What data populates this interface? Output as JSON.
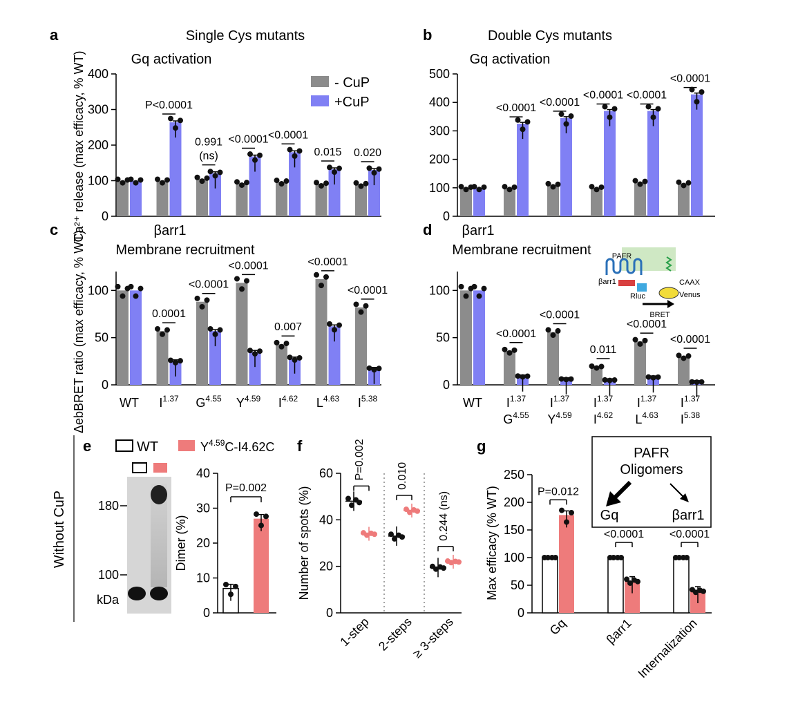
{
  "figure_labels": {
    "a": "a",
    "b": "b",
    "c": "c",
    "d": "d",
    "e": "e",
    "f": "f",
    "g": "g"
  },
  "colors": {
    "gray": "#8c8c8c",
    "blue": "#8080f4",
    "red": "#ee7b7b",
    "black": "#111111"
  },
  "legend_ab": {
    "minus": "- CuP",
    "plus": "+CuP"
  },
  "panel_e_side": "Without CuP",
  "chart_data": [
    {
      "id": "a",
      "type": "bar",
      "title": "Single Cys mutants",
      "subtitle": "Gq activation",
      "ylabel": "Ca²⁺ release (max efficacy, % WT)",
      "ylim": [
        0,
        400
      ],
      "yticks": [
        0,
        100,
        200,
        300,
        400
      ],
      "categories": [
        "WT",
        "I1.37",
        "G4.55",
        "Y4.59",
        "I4.62",
        "L4.63",
        "I5.38"
      ],
      "series": [
        {
          "name": "- CuP",
          "values": [
            100,
            100,
            105,
            93,
            97,
            91,
            90
          ]
        },
        {
          "name": "+CuP",
          "values": [
            100,
            264,
            121,
            168,
            180,
            132,
            130
          ]
        }
      ],
      "p_values": [
        "",
        "P<0.0001",
        "0.991 (ns)",
        "<0.0001",
        "<0.0001",
        "0.015",
        "0.020"
      ]
    },
    {
      "id": "b",
      "type": "bar",
      "title": "Double Cys mutants",
      "subtitle": "Gq activation",
      "ylim": [
        0,
        500
      ],
      "yticks": [
        0,
        100,
        200,
        300,
        400,
        500
      ],
      "categories": [
        "WT",
        "I1.37-G4.55",
        "I1.37-Y4.59",
        "I1.37-I4.62",
        "I1.37-L4.63",
        "I1.37-I5.38"
      ],
      "series": [
        {
          "name": "- CuP",
          "values": [
            100,
            100,
            110,
            100,
            120,
            115
          ]
        },
        {
          "name": "+CuP",
          "values": [
            100,
            325,
            345,
            370,
            370,
            428
          ]
        }
      ],
      "p_values": [
        "",
        "<0.0001",
        "<0.0001",
        "<0.0001",
        "<0.0001",
        "<0.0001"
      ]
    },
    {
      "id": "c",
      "type": "bar",
      "title": "βarr1",
      "subtitle": "Membrane recruitment",
      "ylabel": "ΔebBRET ratio (max efficacy, % WT)",
      "ylim": [
        0,
        120
      ],
      "yticks": [
        0,
        50,
        100
      ],
      "categories": [
        "WT",
        "I1.37",
        "G4.55",
        "Y4.59",
        "I4.62",
        "L4.63",
        "I5.38"
      ],
      "series": [
        {
          "name": "- CuP",
          "values": [
            100,
            57,
            88,
            108,
            43,
            112,
            82
          ]
        },
        {
          "name": "+CuP",
          "values": [
            100,
            25,
            57,
            35,
            28,
            62,
            17
          ]
        }
      ],
      "p_values": [
        "",
        "0.0001",
        "<0.0001",
        "<0.0001",
        "0.007",
        "<0.0001",
        "<0.0001"
      ]
    },
    {
      "id": "d",
      "type": "bar",
      "title": "βarr1",
      "subtitle": "Membrane recruitment",
      "ylim": [
        0,
        120
      ],
      "yticks": [
        0,
        50,
        100
      ],
      "categories": [
        "WT",
        "I1.37-G4.55",
        "I1.37-Y4.59",
        "I1.37-I4.62",
        "I1.37-L4.63",
        "I1.37-I5.38"
      ],
      "series": [
        {
          "name": "- CuP",
          "values": [
            100,
            36,
            56,
            19,
            46,
            30
          ]
        },
        {
          "name": "+CuP",
          "values": [
            100,
            9,
            6,
            5,
            8,
            3
          ]
        }
      ],
      "p_values": [
        "",
        "<0.0001",
        "<0.0001",
        "0.011",
        "<0.0001",
        "<0.0001"
      ],
      "inset": {
        "receptor": "PAFR",
        "caax": "CAAX",
        "barr": "βarr1",
        "rluc": "Rluc",
        "venus": "Venus",
        "bret": "BRET"
      }
    },
    {
      "id": "e_blot",
      "type": "table",
      "legend": [
        "WT",
        "Y4.59C-I4.62C"
      ],
      "markers_kda": [
        180,
        100
      ],
      "unit": "kDa"
    },
    {
      "id": "e",
      "type": "bar",
      "ylabel": "Dimer (%)",
      "ylim": [
        0,
        40
      ],
      "yticks": [
        0,
        10,
        20,
        30,
        40
      ],
      "categories": [
        "WT",
        "Y4.59C-I4.62C"
      ],
      "values": [
        7,
        27
      ],
      "p_values": [
        "P=0.002"
      ]
    },
    {
      "id": "f",
      "type": "scatter",
      "ylabel": "Number of spots (%)",
      "ylim": [
        0,
        60
      ],
      "yticks": [
        0,
        20,
        40,
        60
      ],
      "categories": [
        "1-step",
        "2-steps",
        "≥ 3-steps"
      ],
      "series": [
        {
          "name": "WT",
          "values": [
            48,
            33,
            19.5
          ]
        },
        {
          "name": "Y4.59C-I4.62C",
          "values": [
            34,
            44,
            22
          ]
        }
      ],
      "p_values": [
        "P=0.002",
        "0.010",
        "0.244 (ns)"
      ]
    },
    {
      "id": "g",
      "type": "bar",
      "ylabel": "Max efficacy (% WT)",
      "ylim": [
        0,
        250
      ],
      "yticks": [
        0,
        50,
        100,
        150,
        200,
        250
      ],
      "categories": [
        "Gq",
        "βarr1",
        "Internalization"
      ],
      "series": [
        {
          "name": "WT",
          "values": [
            100,
            100,
            100
          ]
        },
        {
          "name": "Y4.59C-I4.62C",
          "values": [
            177,
            58,
            40
          ]
        }
      ],
      "p_values": [
        "P=0.012",
        "<0.0001",
        "<0.0001"
      ],
      "inset": {
        "title1": "PAFR",
        "title2": "Oligomers",
        "left": "Gq",
        "right": "βarr1"
      }
    }
  ]
}
